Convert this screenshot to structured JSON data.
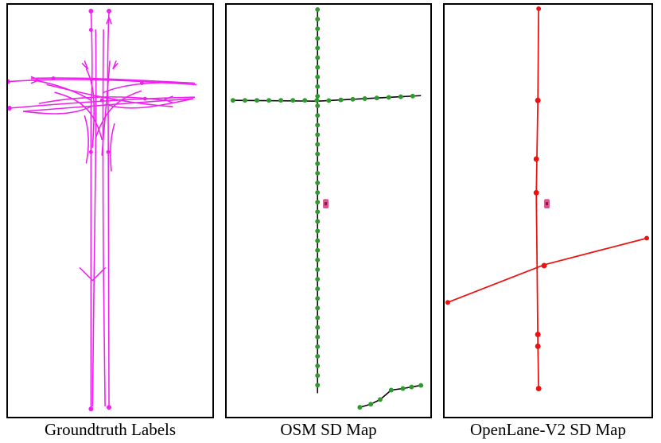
{
  "figure": {
    "panels": [
      {
        "id": "groundtruth",
        "caption": "Groundtruth Labels",
        "color": "#ee22ee"
      },
      {
        "id": "osm",
        "caption": "OSM SD Map",
        "color": "#2e9a2e",
        "line_color": "#000000"
      },
      {
        "id": "openlane",
        "caption": "OpenLane-V2 SD Map",
        "color": "#ee1111"
      }
    ],
    "ego_vehicle": {
      "name": "ego-vehicle-marker",
      "color": "#e0508a"
    }
  }
}
